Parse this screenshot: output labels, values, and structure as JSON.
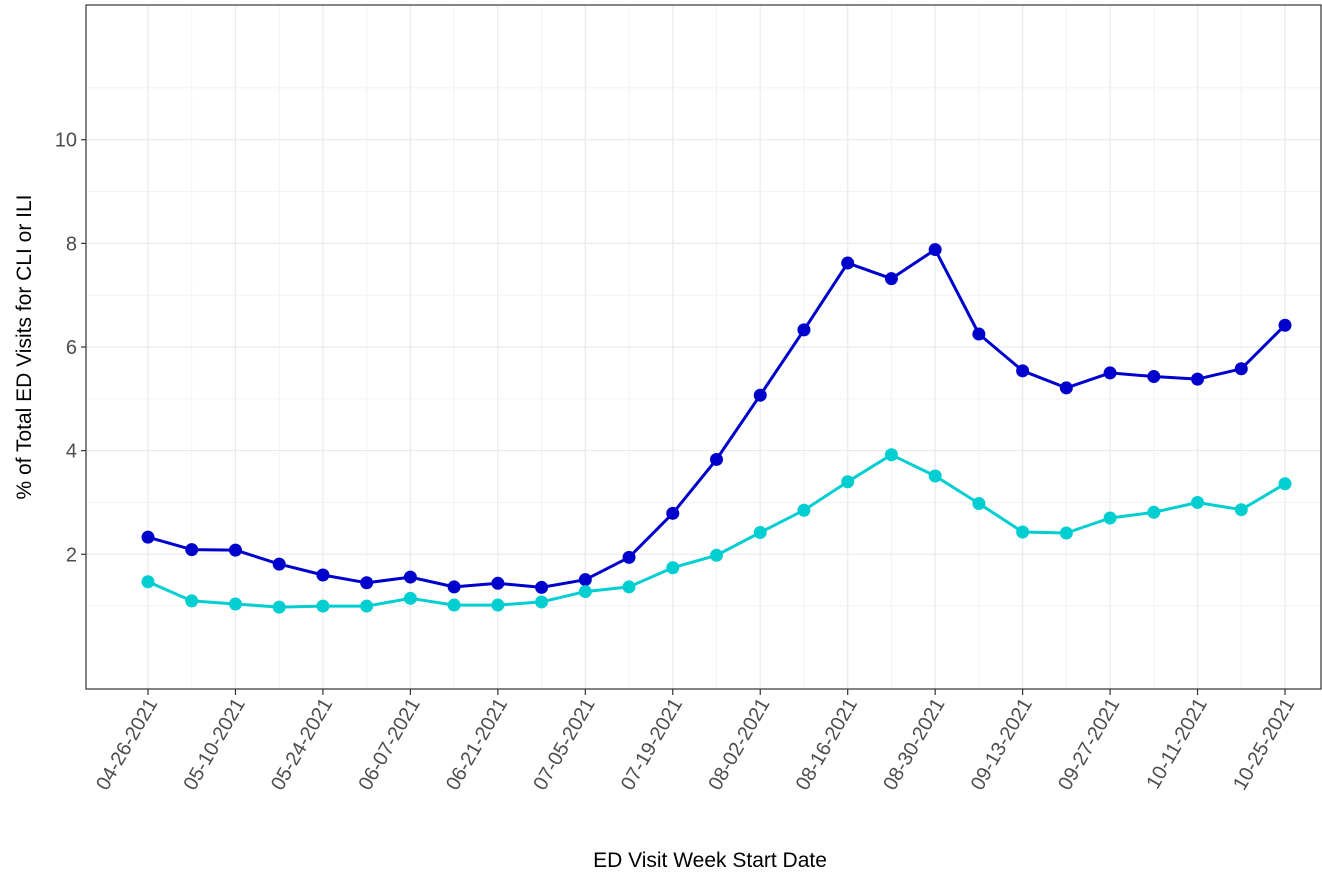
{
  "chart_data": {
    "type": "line",
    "xlabel": "ED Visit Week Start Date",
    "ylabel": "% of Total ED Visits for CLI or ILI",
    "x": [
      "04-26-2021",
      "05-03-2021",
      "05-10-2021",
      "05-17-2021",
      "05-24-2021",
      "05-31-2021",
      "06-07-2021",
      "06-14-2021",
      "06-21-2021",
      "06-28-2021",
      "07-05-2021",
      "07-12-2021",
      "07-19-2021",
      "07-26-2021",
      "08-02-2021",
      "08-09-2021",
      "08-16-2021",
      "08-23-2021",
      "08-30-2021",
      "09-06-2021",
      "09-13-2021",
      "09-20-2021",
      "09-27-2021",
      "10-04-2021",
      "10-11-2021",
      "10-18-2021",
      "10-25-2021"
    ],
    "x_tick_labels": [
      "04-26-2021",
      "05-10-2021",
      "05-24-2021",
      "06-07-2021",
      "06-21-2021",
      "07-05-2021",
      "07-19-2021",
      "08-02-2021",
      "08-16-2021",
      "08-30-2021",
      "09-13-2021",
      "09-27-2021",
      "10-11-2021",
      "10-25-2021"
    ],
    "y_ticks": [
      2,
      4,
      6,
      8,
      10
    ],
    "y_tick_labels": [
      "2",
      "4",
      "6",
      "8",
      "10"
    ],
    "ylim": [
      -0.6,
      12.6
    ],
    "grid": true,
    "series": [
      {
        "color": "#0000cd",
        "values": [
          2.33,
          2.09,
          2.08,
          1.81,
          1.6,
          1.45,
          1.56,
          1.37,
          1.44,
          1.36,
          1.51,
          1.94,
          2.79,
          3.83,
          5.07,
          6.33,
          7.62,
          7.32,
          7.88,
          6.25,
          5.54,
          5.21,
          5.5,
          5.43,
          5.38,
          5.58,
          6.42
        ]
      },
      {
        "color": "#00ced1",
        "values": [
          1.47,
          1.1,
          1.04,
          0.98,
          1.0,
          1.0,
          1.15,
          1.02,
          1.02,
          1.08,
          1.28,
          1.37,
          1.74,
          1.98,
          2.42,
          2.85,
          3.4,
          3.92,
          3.51,
          2.98,
          2.43,
          2.41,
          2.7,
          2.81,
          3.0,
          2.86,
          3.36
        ]
      }
    ]
  }
}
